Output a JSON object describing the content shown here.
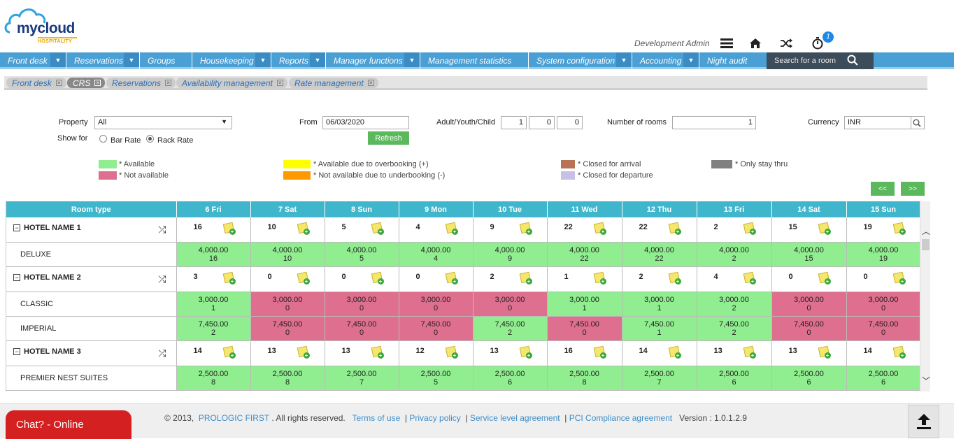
{
  "brand": {
    "name": "mycloud",
    "sub": "HOSPITALITY"
  },
  "header": {
    "user": "Development Admin",
    "notification_count": "1",
    "icons": [
      "menu-icon",
      "home-icon",
      "shuffle-icon",
      "timer-icon"
    ]
  },
  "nav": {
    "items": [
      {
        "label": "Front desk",
        "dropdown": true
      },
      {
        "label": "Reservations",
        "dropdown": true
      },
      {
        "label": "Groups",
        "dropdown": false
      },
      {
        "label": "Housekeeping",
        "dropdown": true
      },
      {
        "label": "Reports",
        "dropdown": true
      },
      {
        "label": "Manager functions",
        "dropdown": true
      },
      {
        "label": "Management statistics",
        "dropdown": false
      },
      {
        "label": "System configuration",
        "dropdown": true
      },
      {
        "label": "Accounting",
        "dropdown": true
      },
      {
        "label": "Night audit",
        "dropdown": false
      }
    ],
    "search_placeholder": "Search for a room"
  },
  "tabs": [
    {
      "label": "Front desk",
      "active": false
    },
    {
      "label": "CRS",
      "active": true
    },
    {
      "label": "Reservations",
      "active": false
    },
    {
      "label": "Availability management",
      "active": false
    },
    {
      "label": "Rate management",
      "active": false
    }
  ],
  "filter": {
    "property_label": "Property",
    "property_value": "All",
    "from_label": "From",
    "from_value": "06/03/2020",
    "guests_label": "Adult/Youth/Child",
    "adult": "1",
    "youth": "0",
    "child": "0",
    "rooms_label": "Number of rooms",
    "rooms_value": "1",
    "currency_label": "Currency",
    "currency_value": "INR",
    "show_for_label": "Show for",
    "bar_rate": "Bar Rate",
    "rack_rate": "Rack Rate",
    "selected": "rack",
    "refresh": "Refresh"
  },
  "legend": [
    {
      "label": "* Available",
      "color": "#90ee90"
    },
    {
      "label": "* Not available",
      "color": "#df6f8e"
    },
    {
      "label": "* Available due to overbooking (+)",
      "color": "#ffff00"
    },
    {
      "label": "* Not available due to underbooking (-)",
      "color": "#ff9900"
    },
    {
      "label": "* Closed for arrival",
      "color": "#b87356"
    },
    {
      "label": "* Closed for departure",
      "color": "#c9c0e6"
    },
    {
      "label": "* Only stay thru",
      "color": "#808080"
    }
  ],
  "pager": {
    "prev": "<<",
    "next": ">>"
  },
  "grid": {
    "room_type_header": "Room type",
    "days": [
      "6 Fri",
      "7 Sat",
      "8 Sun",
      "9 Mon",
      "10 Tue",
      "11 Wed",
      "12 Thu",
      "13 Fri",
      "14 Sat",
      "15 Sun"
    ],
    "hotels": [
      {
        "name": "HOTEL NAME 1",
        "counts": [
          "16",
          "10",
          "5",
          "4",
          "9",
          "22",
          "22",
          "2",
          "15",
          "19"
        ],
        "rooms": [
          {
            "name": "DELUXE",
            "rate": "4,000.00",
            "avail": [
              "16",
              "10",
              "5",
              "4",
              "9",
              "22",
              "22",
              "2",
              "15",
              "19"
            ],
            "status": [
              "a",
              "a",
              "a",
              "a",
              "a",
              "a",
              "a",
              "a",
              "a",
              "a"
            ]
          }
        ]
      },
      {
        "name": "HOTEL NAME 2",
        "counts": [
          "3",
          "0",
          "0",
          "0",
          "2",
          "1",
          "2",
          "4",
          "0",
          "0"
        ],
        "rooms": [
          {
            "name": "CLASSIC",
            "rate": "3,000.00",
            "avail": [
              "1",
              "0",
              "0",
              "0",
              "0",
              "1",
              "1",
              "2",
              "0",
              "0"
            ],
            "status": [
              "a",
              "n",
              "n",
              "n",
              "n",
              "a",
              "a",
              "a",
              "n",
              "n"
            ]
          },
          {
            "name": "IMPERIAL",
            "rate": "7,450.00",
            "avail": [
              "2",
              "0",
              "0",
              "0",
              "2",
              "0",
              "1",
              "2",
              "0",
              "0"
            ],
            "status": [
              "a",
              "n",
              "n",
              "n",
              "a",
              "n",
              "a",
              "a",
              "n",
              "n"
            ]
          }
        ]
      },
      {
        "name": "HOTEL NAME 3",
        "counts": [
          "14",
          "13",
          "13",
          "12",
          "13",
          "16",
          "14",
          "13",
          "13",
          "14"
        ],
        "rooms": [
          {
            "name": "PREMIER NEST SUITES",
            "rate": "2,500.00",
            "avail": [
              "8",
              "8",
              "7",
              "5",
              "6",
              "8",
              "7",
              "6",
              "6",
              "6"
            ],
            "status": [
              "a",
              "a",
              "a",
              "a",
              "a",
              "a",
              "a",
              "a",
              "a",
              "a"
            ]
          }
        ]
      }
    ]
  },
  "footer": {
    "chat": "Chat? - Online",
    "copyright": "© 2013,",
    "company": "PROLOGIC FIRST",
    "rights": ". All rights reserved.",
    "links": [
      "Terms of use",
      "Privacy policy",
      "Service level agreement",
      "PCI Compliance agreement"
    ],
    "version": "Version : 1.0.1.2.9"
  }
}
